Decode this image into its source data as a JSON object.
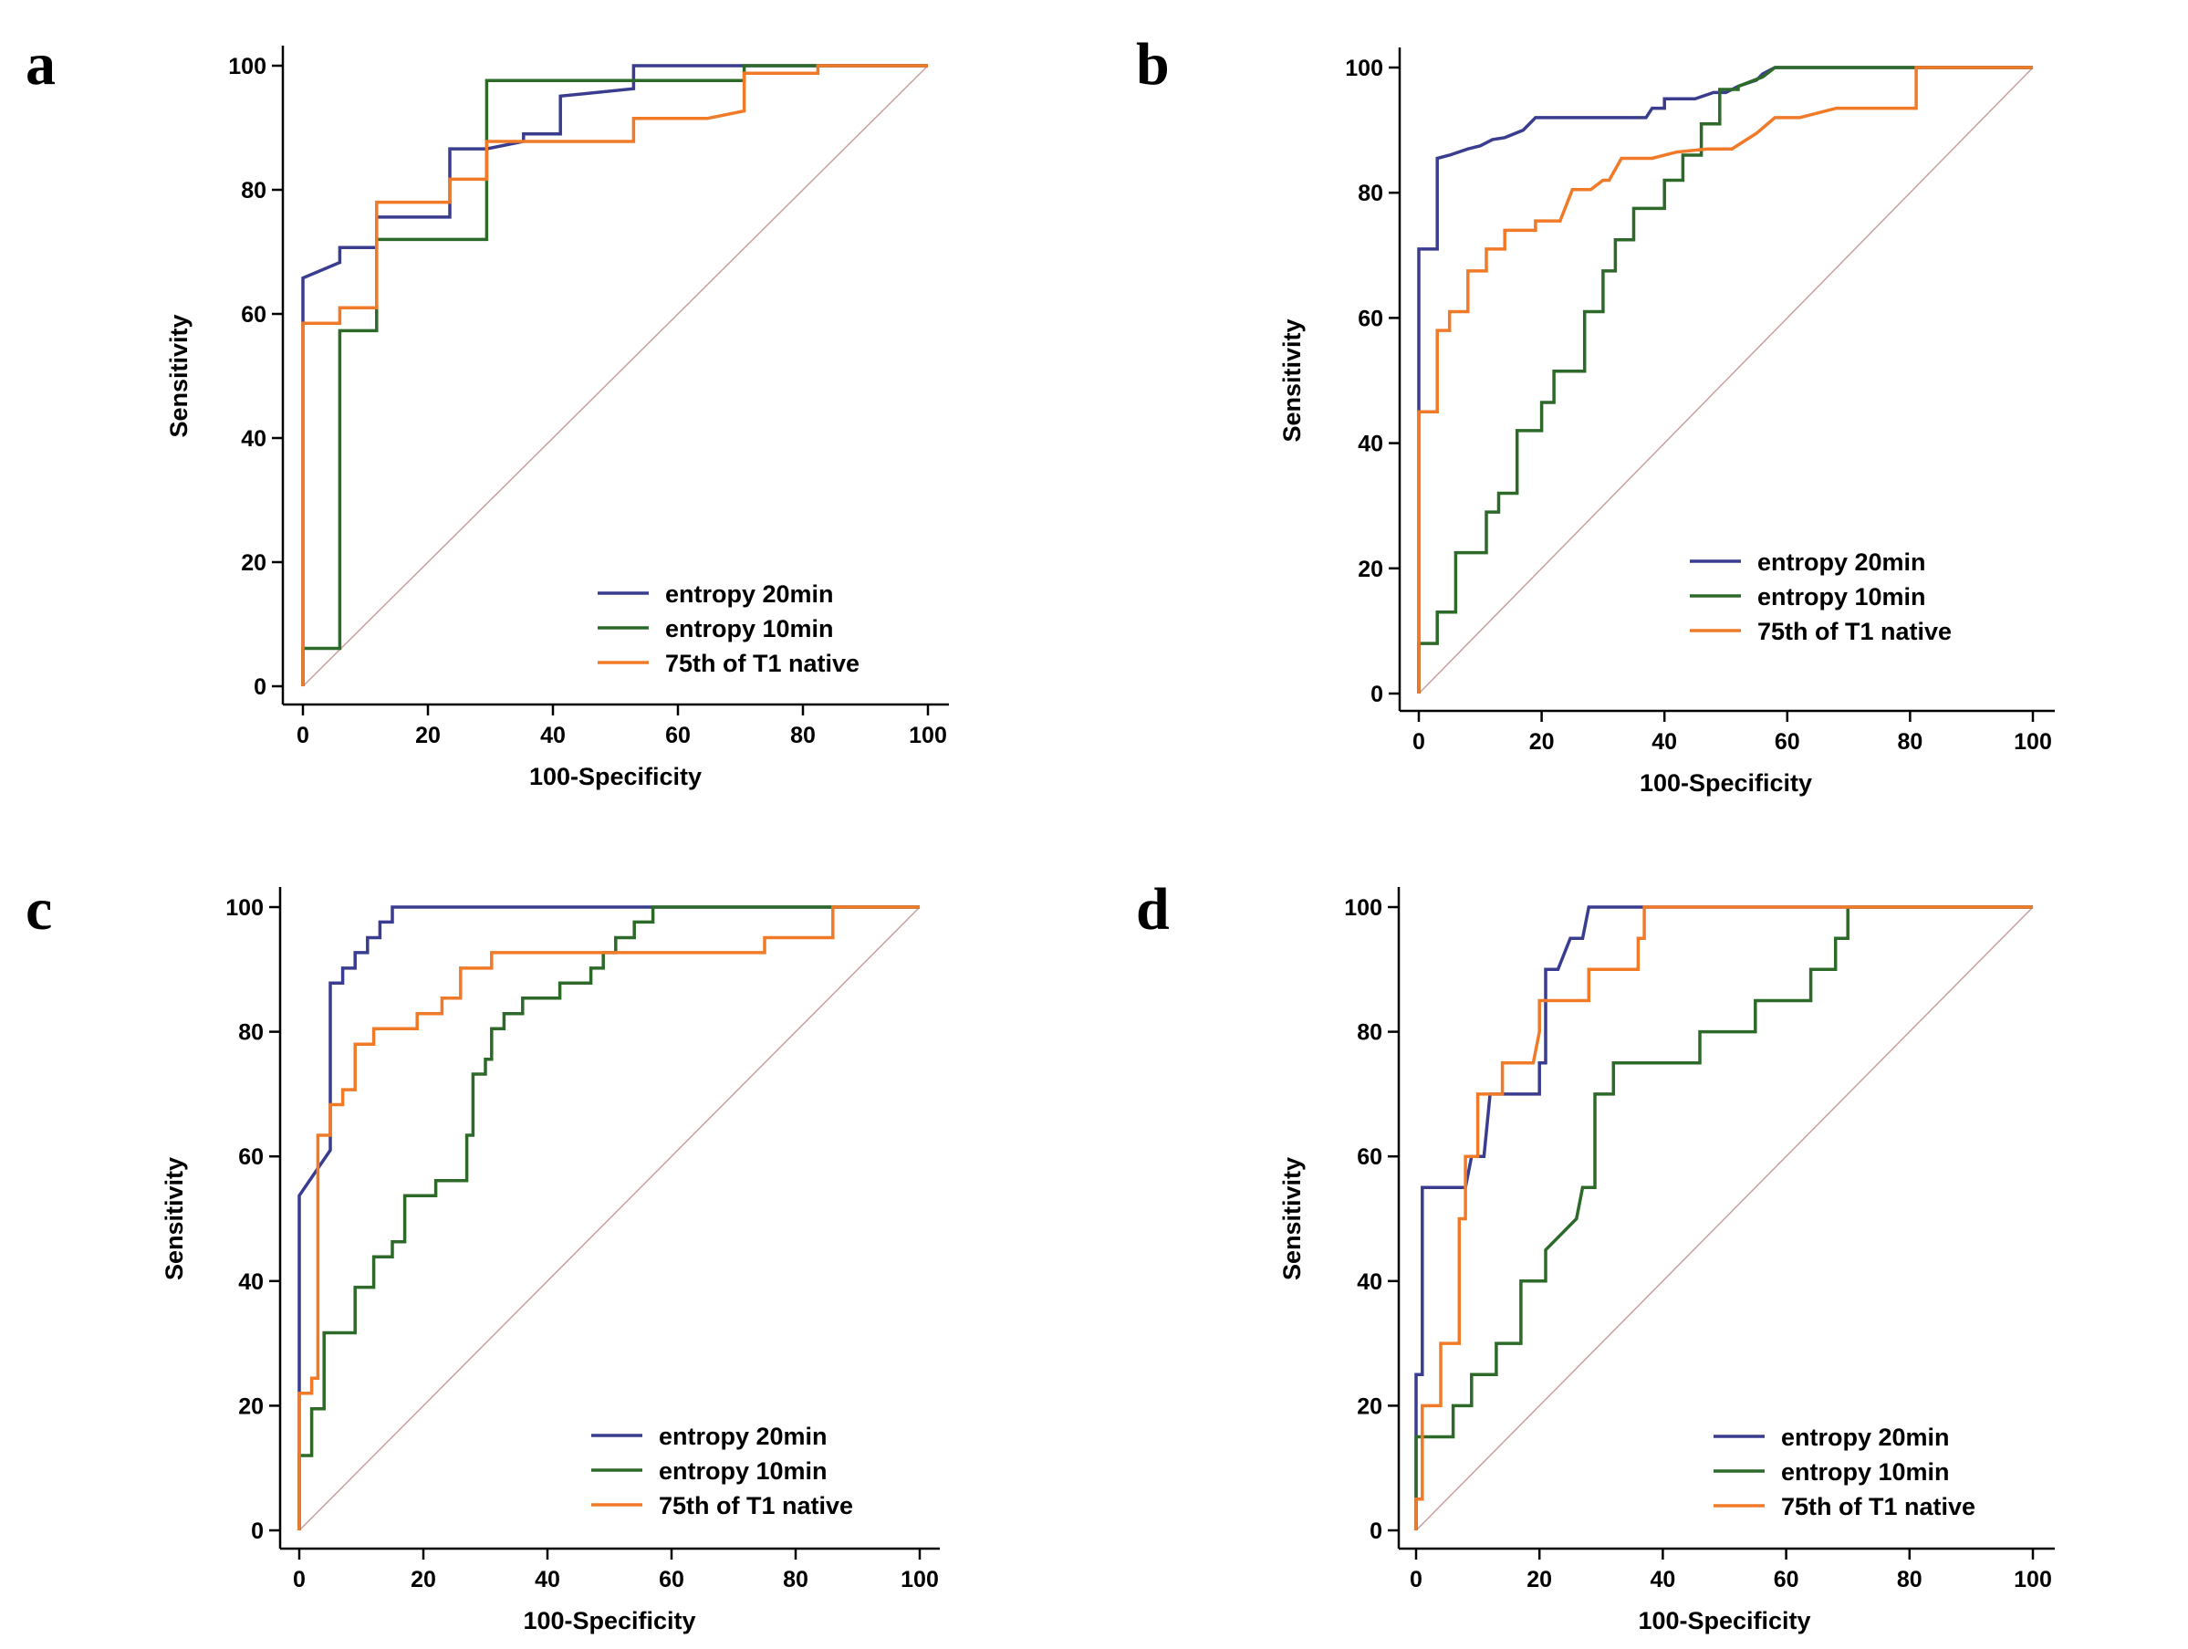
{
  "colors": {
    "entropy_20min": "#3a3d8f",
    "entropy_10min": "#2d6a2a",
    "t1_native": "#f07a28",
    "diagonal": "#c9a0a0",
    "axis": "#000000"
  },
  "chart_data": [
    {
      "panel": "a",
      "type": "line",
      "xlabel": "100-Specificity",
      "ylabel": "Sensitivity",
      "xlim": [
        0,
        100
      ],
      "ylim": [
        0,
        100
      ],
      "xticks": [
        "0",
        "20",
        "40",
        "60",
        "80",
        "100"
      ],
      "yticks": [
        "0",
        "20",
        "40",
        "60",
        "80",
        "100"
      ],
      "legend_position": "bottom-right",
      "series": [
        {
          "name": "entropy 20min",
          "color_key": "entropy_20min",
          "x": [
            0,
            0,
            5.9,
            5.9,
            11.8,
            11.8,
            23.5,
            23.5,
            29.4,
            35.3,
            35.3,
            41.2,
            41.2,
            52.9,
            52.9,
            82.4,
            100
          ],
          "y": [
            0,
            65.8,
            68.3,
            70.7,
            70.7,
            75.6,
            75.6,
            86.6,
            86.6,
            87.8,
            89,
            89,
            95.1,
            96.3,
            100,
            100,
            100
          ]
        },
        {
          "name": "entropy 10min",
          "color_key": "entropy_10min",
          "x": [
            0,
            0,
            5.9,
            5.9,
            11.8,
            11.8,
            29.4,
            29.4,
            52.9,
            70.6,
            70.6,
            100
          ],
          "y": [
            0,
            6.1,
            6.1,
            57.3,
            57.3,
            72,
            72,
            97.6,
            97.6,
            97.6,
            100,
            100
          ]
        },
        {
          "name": "75th of T1 native",
          "color_key": "t1_native",
          "x": [
            0,
            0,
            5.9,
            5.9,
            11.8,
            11.8,
            23.5,
            23.5,
            29.4,
            29.4,
            52.9,
            52.9,
            64.7,
            70.6,
            70.6,
            82.4,
            82.4,
            100
          ],
          "y": [
            0,
            58.5,
            58.5,
            61,
            61,
            78,
            78,
            81.7,
            81.7,
            87.8,
            87.8,
            91.5,
            91.5,
            92.7,
            98.8,
            98.8,
            100,
            100
          ]
        }
      ]
    },
    {
      "panel": "b",
      "type": "line",
      "xlabel": "100-Specificity",
      "ylabel": "Sensitivity",
      "xlim": [
        0,
        100
      ],
      "ylim": [
        0,
        100
      ],
      "xticks": [
        "0",
        "20",
        "40",
        "60",
        "80",
        "100"
      ],
      "yticks": [
        "0",
        "20",
        "40",
        "60",
        "80",
        "100"
      ],
      "legend_position": "bottom-right",
      "series": [
        {
          "name": "entropy 20min",
          "color_key": "entropy_20min",
          "x": [
            0,
            0,
            3,
            3,
            5,
            8,
            10,
            12,
            14,
            17,
            19,
            21,
            25,
            30,
            37,
            38,
            40,
            40,
            43,
            45,
            48,
            50,
            52,
            55,
            56,
            58,
            60,
            100
          ],
          "y": [
            0,
            71,
            71,
            85.5,
            86,
            87,
            87.5,
            88.5,
            88.8,
            90,
            92,
            92,
            92,
            92,
            92,
            93.5,
            93.5,
            95,
            95,
            95,
            96,
            96,
            97,
            98,
            99,
            100,
            100,
            100
          ]
        },
        {
          "name": "entropy 10min",
          "color_key": "entropy_10min",
          "x": [
            0,
            0,
            3,
            3,
            6,
            6,
            11,
            11,
            13,
            13,
            16,
            16,
            20,
            20,
            22,
            22,
            27,
            27,
            30,
            30,
            32,
            32,
            35,
            35,
            40,
            40,
            43,
            43,
            46,
            46,
            49,
            49,
            52,
            52,
            56,
            58,
            100
          ],
          "y": [
            0,
            8,
            8,
            13,
            13,
            22.5,
            22.5,
            29,
            29,
            32,
            32,
            42,
            42,
            46.5,
            46.5,
            51.5,
            51.5,
            61,
            61,
            67.5,
            67.5,
            72.5,
            72.5,
            77.5,
            77.5,
            82,
            82,
            86,
            86,
            91,
            91,
            96.5,
            96.5,
            97,
            98.5,
            100,
            100
          ]
        },
        {
          "name": "75th of T1 native",
          "color_key": "t1_native",
          "x": [
            0,
            0,
            3,
            3,
            5,
            5,
            8,
            8,
            11,
            11,
            14,
            14,
            19,
            19,
            23,
            25,
            28,
            30,
            31,
            33,
            35,
            38,
            42,
            47,
            50,
            51,
            55,
            58,
            62,
            68,
            70,
            78,
            81,
            81,
            100
          ],
          "y": [
            0,
            45,
            45,
            58,
            58,
            61,
            61,
            67.5,
            67.5,
            71,
            71,
            74,
            74,
            75.5,
            75.5,
            80.5,
            80.5,
            82,
            82,
            85.5,
            85.5,
            85.5,
            86.5,
            87,
            87,
            87,
            89.5,
            92,
            92,
            93.5,
            93.5,
            93.5,
            93.5,
            100,
            100
          ]
        }
      ]
    },
    {
      "panel": "c",
      "type": "line",
      "xlabel": "100-Specificity",
      "ylabel": "Sensitivity",
      "xlim": [
        0,
        100
      ],
      "ylim": [
        0,
        100
      ],
      "xticks": [
        "0",
        "20",
        "40",
        "60",
        "80",
        "100"
      ],
      "yticks": [
        "0",
        "20",
        "40",
        "60",
        "80",
        "100"
      ],
      "legend_position": "bottom-right",
      "series": [
        {
          "name": "entropy 20min",
          "color_key": "entropy_20min",
          "x": [
            0,
            0,
            5,
            5,
            7,
            7,
            9,
            9,
            11,
            11,
            13,
            13,
            15,
            15,
            17,
            17,
            20,
            100
          ],
          "y": [
            0,
            53.7,
            61,
            87.8,
            87.8,
            90.2,
            90.2,
            92.7,
            92.7,
            95.1,
            95.1,
            97.6,
            97.6,
            100,
            100,
            100,
            100,
            100
          ]
        },
        {
          "name": "entropy 10min",
          "color_key": "entropy_10min",
          "x": [
            0,
            0,
            2,
            2,
            4,
            4,
            9,
            9,
            12,
            12,
            15,
            15,
            17,
            17,
            22,
            22,
            27,
            27,
            28,
            28,
            30,
            30,
            31,
            31,
            33,
            33,
            36,
            36,
            42,
            42,
            47,
            47,
            49,
            49,
            51,
            51,
            54,
            54,
            57,
            57,
            60,
            60,
            100
          ],
          "y": [
            0,
            12,
            12,
            19.5,
            19.5,
            31.7,
            31.7,
            39,
            39,
            43.9,
            43.9,
            46.3,
            46.3,
            53.7,
            53.7,
            56.1,
            56.1,
            63.4,
            63.4,
            73.2,
            73.2,
            75.6,
            75.6,
            80.5,
            80.5,
            82.9,
            82.9,
            85.4,
            85.4,
            87.8,
            87.8,
            90.2,
            90.2,
            92.7,
            92.7,
            95.1,
            95.1,
            97.6,
            97.6,
            100,
            100,
            100,
            100
          ]
        },
        {
          "name": "75th of T1 native",
          "color_key": "t1_native",
          "x": [
            0,
            0,
            2,
            2,
            3,
            3,
            5,
            5,
            7,
            7,
            9,
            9,
            12,
            12,
            19,
            19,
            23,
            23,
            26,
            26,
            31,
            31,
            50,
            65,
            75,
            75,
            86,
            86,
            100
          ],
          "y": [
            0,
            22,
            22,
            24.4,
            24.4,
            63.4,
            63.4,
            68.3,
            68.3,
            70.7,
            70.7,
            78,
            78,
            80.5,
            80.5,
            82.9,
            82.9,
            85.4,
            85.4,
            90.2,
            90.2,
            92.7,
            92.7,
            92.7,
            92.7,
            95.1,
            95.1,
            100,
            100
          ]
        }
      ]
    },
    {
      "panel": "d",
      "type": "line",
      "xlabel": "100-Specificity",
      "ylabel": "Sensitivity",
      "xlim": [
        0,
        100
      ],
      "ylim": [
        0,
        100
      ],
      "xticks": [
        "0",
        "20",
        "40",
        "60",
        "80",
        "100"
      ],
      "yticks": [
        "0",
        "20",
        "40",
        "60",
        "80",
        "100"
      ],
      "legend_position": "bottom-right",
      "series": [
        {
          "name": "entropy 20min",
          "color_key": "entropy_20min",
          "x": [
            0,
            0,
            1,
            1,
            2,
            2,
            8,
            9,
            11,
            12,
            13,
            14,
            20,
            20,
            21,
            21,
            23,
            25,
            27,
            28,
            30,
            38,
            100
          ],
          "y": [
            0,
            25,
            25,
            55,
            55,
            55,
            55,
            60,
            60,
            70,
            70,
            70,
            70,
            75,
            75,
            90,
            90,
            95,
            95,
            100,
            100,
            100,
            100
          ]
        },
        {
          "name": "entropy 10min",
          "color_key": "entropy_10min",
          "x": [
            0,
            0,
            6,
            6,
            9,
            9,
            13,
            13,
            17,
            17,
            21,
            21,
            26,
            26,
            27,
            29,
            29,
            32,
            32,
            34,
            37,
            39,
            46,
            46,
            52,
            55,
            55,
            64,
            64,
            68,
            68,
            70,
            70,
            100
          ],
          "y": [
            0,
            15,
            15,
            20,
            20,
            25,
            25,
            30,
            30,
            40,
            40,
            45,
            50,
            50,
            55,
            55,
            70,
            70,
            75,
            75,
            75,
            75,
            75,
            80,
            80,
            80,
            85,
            85,
            90,
            90,
            95,
            95,
            100,
            100
          ]
        },
        {
          "name": "75th of T1 native",
          "color_key": "t1_native",
          "x": [
            0,
            0,
            1,
            1,
            4,
            4,
            7,
            7,
            8,
            8,
            9,
            10,
            10,
            14,
            14,
            19,
            20,
            20,
            28,
            28,
            36,
            36,
            37,
            37,
            100
          ],
          "y": [
            0,
            5,
            5,
            20,
            20,
            30,
            30,
            50,
            50,
            60,
            60,
            60,
            70,
            70,
            75,
            75,
            80,
            85,
            85,
            90,
            90,
            95,
            95,
            100,
            100
          ]
        }
      ]
    }
  ]
}
